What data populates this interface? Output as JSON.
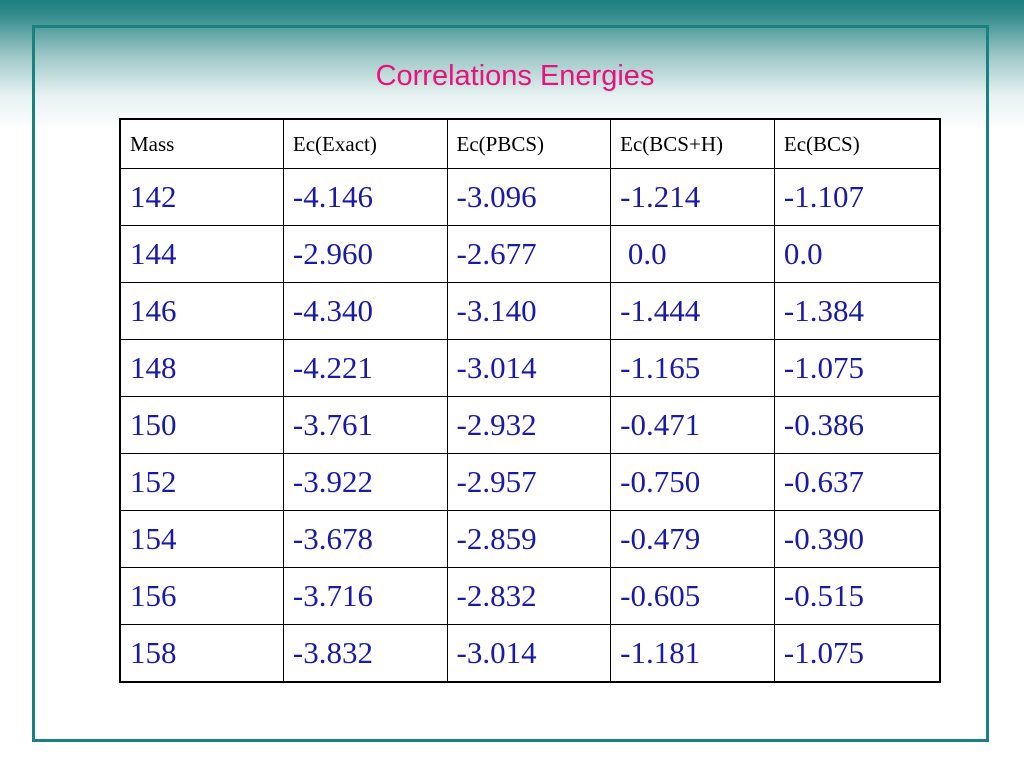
{
  "slide": {
    "title": "Correlations Energies"
  },
  "table": {
    "headers": [
      "Mass",
      "Ec(Exact)",
      "Ec(PBCS)",
      "Ec(BCS+H)",
      "Ec(BCS)"
    ],
    "rows": [
      [
        "142",
        "-4.146",
        "-3.096",
        "-1.214",
        "-1.107"
      ],
      [
        "144",
        "-2.960",
        "-2.677",
        " 0.0",
        "0.0"
      ],
      [
        "146",
        "-4.340",
        "-3.140",
        "-1.444",
        "-1.384"
      ],
      [
        "148",
        "-4.221",
        "-3.014",
        "-1.165",
        "-1.075"
      ],
      [
        "150",
        "-3.761",
        "-2.932",
        "-0.471",
        "-0.386"
      ],
      [
        "152",
        "-3.922",
        "-2.957",
        "-0.750",
        "-0.637"
      ],
      [
        "154",
        "-3.678",
        "-2.859",
        "-0.479",
        "-0.390"
      ],
      [
        "156",
        "-3.716",
        "-2.832",
        "-0.605",
        "-0.515"
      ],
      [
        "158",
        "-3.832",
        "-3.014",
        "-1.181",
        "-1.075"
      ]
    ]
  },
  "colors": {
    "frame": "#1a8080",
    "title": "#e8127c",
    "cell_text": "#1a1aa6",
    "header_text": "#000000"
  }
}
